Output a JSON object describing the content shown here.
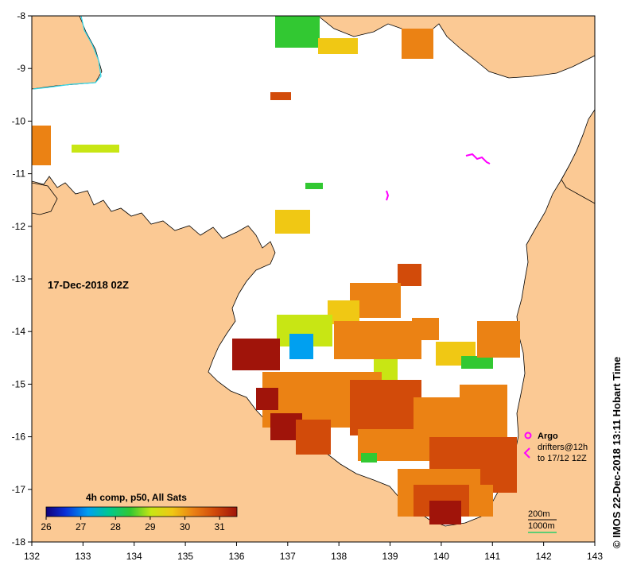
{
  "map": {
    "date_label": "17-Dec-2018 02Z",
    "lon_ticks": [
      "132",
      "133",
      "134",
      "135",
      "136",
      "137",
      "138",
      "139",
      "140",
      "141",
      "142",
      "143"
    ],
    "lat_ticks": [
      "-8",
      "-9",
      "-10",
      "-11",
      "-12",
      "-13",
      "-14",
      "-15",
      "-16",
      "-17",
      "-18"
    ],
    "lon_range": [
      132,
      143
    ],
    "lat_range": [
      -18,
      -8
    ],
    "land_color": "#fbc994",
    "river_color": "#2fd6e8"
  },
  "colorbar": {
    "title": "4h comp, p50, All Sats",
    "tick_labels": [
      "26",
      "27",
      "28",
      "29",
      "30",
      "31"
    ],
    "range": [
      26,
      31.5
    ],
    "colors": [
      "#10007a",
      "#0a2fd8",
      "#00a0f0",
      "#00c890",
      "#32c832",
      "#c8e614",
      "#f0c814",
      "#eb8214",
      "#d24b0a",
      "#a0140a"
    ]
  },
  "legend": {
    "argo_label": "Argo",
    "drifters_label": "drifters@12h",
    "drifters_to_label": "to 17/12 12Z",
    "isobath_200": "200m",
    "isobath_1000": "1000m",
    "argo_color": "#ff00ff",
    "isobath_1000_color": "#00d060"
  },
  "side_label": "© IMOS 22-Dec-2018 13:11 Hobart Time"
}
